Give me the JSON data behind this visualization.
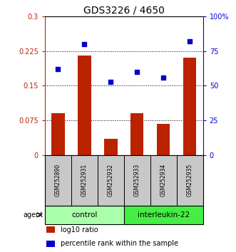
{
  "title": "GDS3226 / 4650",
  "categories": [
    "GSM252890",
    "GSM252931",
    "GSM252932",
    "GSM252933",
    "GSM252934",
    "GSM252935"
  ],
  "bar_values": [
    0.09,
    0.215,
    0.035,
    0.09,
    0.068,
    0.21
  ],
  "scatter_values": [
    62,
    80,
    53,
    60,
    56,
    82
  ],
  "bar_color": "#bb2200",
  "scatter_color": "#0000cc",
  "ylim_left": [
    0,
    0.3
  ],
  "ylim_right": [
    0,
    100
  ],
  "yticks_left": [
    0,
    0.075,
    0.15,
    0.225,
    0.3
  ],
  "ytick_labels_left": [
    "0",
    "0.075",
    "0.15",
    "0.225",
    "0.3"
  ],
  "yticks_right": [
    0,
    25,
    50,
    75,
    100
  ],
  "ytick_labels_right": [
    "0",
    "25",
    "50",
    "75",
    "100%"
  ],
  "hlines": [
    0.075,
    0.15,
    0.225
  ],
  "group_labels": [
    "control",
    "interleukin-22"
  ],
  "group_ranges": [
    [
      0,
      3
    ],
    [
      3,
      6
    ]
  ],
  "group_colors": [
    "#aaffaa",
    "#44ee44"
  ],
  "agent_label": "agent",
  "legend_items": [
    {
      "color": "#bb2200",
      "label": "log10 ratio"
    },
    {
      "color": "#0000cc",
      "label": "percentile rank within the sample"
    }
  ],
  "bar_width": 0.5,
  "bg_color_sample": "#c8c8c8",
  "sample_text_fontsize": 5.5,
  "group_text_fontsize": 7.5,
  "legend_fontsize": 7,
  "title_fontsize": 10,
  "tick_fontsize": 7
}
